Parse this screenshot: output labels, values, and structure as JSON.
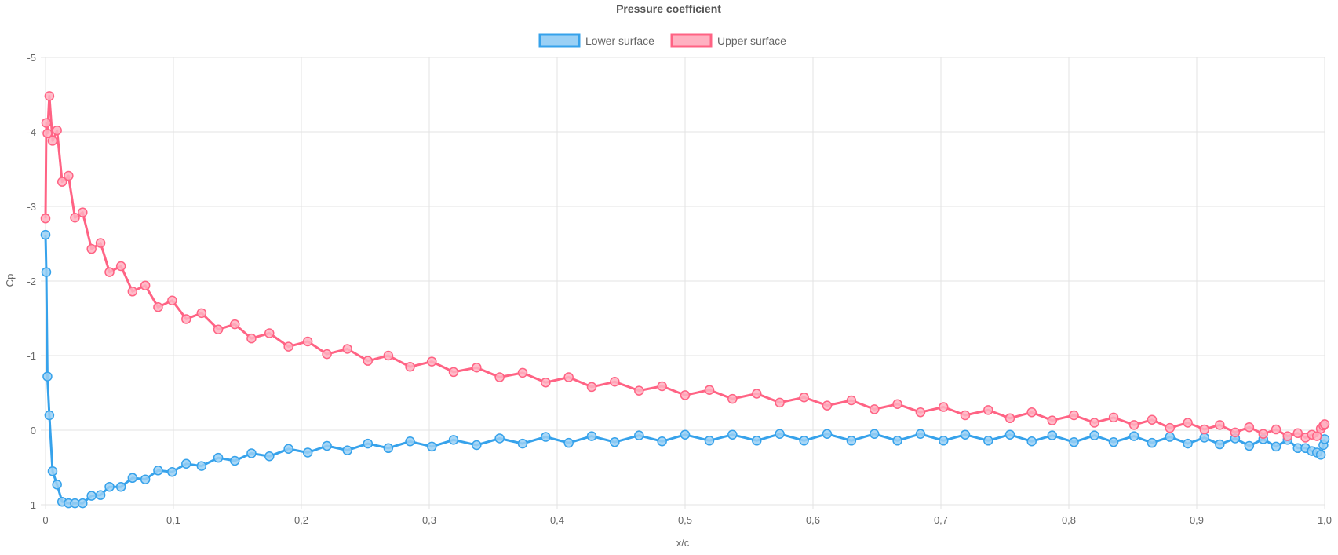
{
  "chart_data": {
    "type": "line",
    "title": "Pressure coefficient",
    "xlabel": "x/c",
    "ylabel": "Cp",
    "xlim": [
      0,
      1
    ],
    "ylim": [
      -5,
      1
    ],
    "y_reversed": true,
    "grid": true,
    "legend_position": "top",
    "x_ticks": [
      "0",
      "0,1",
      "0,2",
      "0,3",
      "0,4",
      "0,5",
      "0,6",
      "0,7",
      "0,8",
      "0,9",
      "1,0"
    ],
    "y_ticks": [
      "-5",
      "-4",
      "-3",
      "-2",
      "-1",
      "0",
      "1"
    ],
    "series": [
      {
        "name": "Lower surface",
        "color": "#36a2eb",
        "fill": "#9ad0f5",
        "x": [
          0.0,
          0.0006,
          0.0015,
          0.003,
          0.0055,
          0.009,
          0.013,
          0.018,
          0.023,
          0.029,
          0.036,
          0.043,
          0.05,
          0.059,
          0.068,
          0.078,
          0.088,
          0.099,
          0.11,
          0.122,
          0.135,
          0.148,
          0.161,
          0.175,
          0.19,
          0.205,
          0.22,
          0.236,
          0.252,
          0.268,
          0.285,
          0.302,
          0.319,
          0.337,
          0.355,
          0.373,
          0.391,
          0.409,
          0.427,
          0.445,
          0.464,
          0.482,
          0.5,
          0.519,
          0.537,
          0.556,
          0.574,
          0.593,
          0.611,
          0.63,
          0.648,
          0.666,
          0.684,
          0.702,
          0.719,
          0.737,
          0.754,
          0.771,
          0.787,
          0.804,
          0.82,
          0.835,
          0.851,
          0.865,
          0.879,
          0.893,
          0.906,
          0.918,
          0.93,
          0.941,
          0.952,
          0.962,
          0.971,
          0.979,
          0.985,
          0.99,
          0.994,
          0.997,
          0.999,
          1.0
        ],
        "y": [
          -2.62,
          -2.12,
          -0.72,
          -0.2,
          0.55,
          0.73,
          0.96,
          0.98,
          0.98,
          0.98,
          0.88,
          0.87,
          0.76,
          0.76,
          0.64,
          0.66,
          0.54,
          0.56,
          0.45,
          0.48,
          0.37,
          0.41,
          0.31,
          0.35,
          0.25,
          0.3,
          0.21,
          0.27,
          0.18,
          0.24,
          0.15,
          0.22,
          0.13,
          0.2,
          0.11,
          0.18,
          0.09,
          0.17,
          0.08,
          0.16,
          0.07,
          0.15,
          0.06,
          0.14,
          0.06,
          0.14,
          0.05,
          0.14,
          0.05,
          0.14,
          0.05,
          0.14,
          0.05,
          0.14,
          0.06,
          0.14,
          0.06,
          0.15,
          0.07,
          0.16,
          0.07,
          0.16,
          0.08,
          0.17,
          0.09,
          0.18,
          0.1,
          0.19,
          0.11,
          0.21,
          0.12,
          0.22,
          0.13,
          0.24,
          0.24,
          0.28,
          0.3,
          0.33,
          0.2,
          0.12
        ]
      },
      {
        "name": "Upper surface",
        "color": "#ff6384",
        "fill": "#ffb1c1",
        "x": [
          0.0,
          0.0006,
          0.0015,
          0.003,
          0.0055,
          0.009,
          0.013,
          0.018,
          0.023,
          0.029,
          0.036,
          0.043,
          0.05,
          0.059,
          0.068,
          0.078,
          0.088,
          0.099,
          0.11,
          0.122,
          0.135,
          0.148,
          0.161,
          0.175,
          0.19,
          0.205,
          0.22,
          0.236,
          0.252,
          0.268,
          0.285,
          0.302,
          0.319,
          0.337,
          0.355,
          0.373,
          0.391,
          0.409,
          0.427,
          0.445,
          0.464,
          0.482,
          0.5,
          0.519,
          0.537,
          0.556,
          0.574,
          0.593,
          0.611,
          0.63,
          0.648,
          0.666,
          0.684,
          0.702,
          0.719,
          0.737,
          0.754,
          0.771,
          0.787,
          0.804,
          0.82,
          0.835,
          0.851,
          0.865,
          0.879,
          0.893,
          0.906,
          0.918,
          0.93,
          0.941,
          0.952,
          0.962,
          0.971,
          0.979,
          0.985,
          0.99,
          0.994,
          0.997,
          0.999,
          1.0
        ],
        "y": [
          -2.84,
          -4.12,
          -3.98,
          -4.48,
          -3.88,
          -4.02,
          -3.33,
          -3.41,
          -2.85,
          -2.92,
          -2.43,
          -2.51,
          -2.12,
          -2.2,
          -1.86,
          -1.94,
          -1.65,
          -1.74,
          -1.49,
          -1.57,
          -1.35,
          -1.42,
          -1.23,
          -1.3,
          -1.12,
          -1.19,
          -1.02,
          -1.09,
          -0.93,
          -1.0,
          -0.85,
          -0.92,
          -0.78,
          -0.84,
          -0.71,
          -0.77,
          -0.64,
          -0.71,
          -0.58,
          -0.65,
          -0.53,
          -0.59,
          -0.47,
          -0.54,
          -0.42,
          -0.49,
          -0.37,
          -0.44,
          -0.33,
          -0.4,
          -0.28,
          -0.35,
          -0.24,
          -0.31,
          -0.2,
          -0.27,
          -0.16,
          -0.24,
          -0.13,
          -0.2,
          -0.1,
          -0.17,
          -0.07,
          -0.14,
          -0.03,
          -0.1,
          -0.01,
          -0.07,
          0.03,
          -0.04,
          0.05,
          -0.01,
          0.08,
          0.04,
          0.1,
          0.06,
          0.08,
          -0.02,
          -0.06,
          -0.08
        ]
      }
    ]
  }
}
